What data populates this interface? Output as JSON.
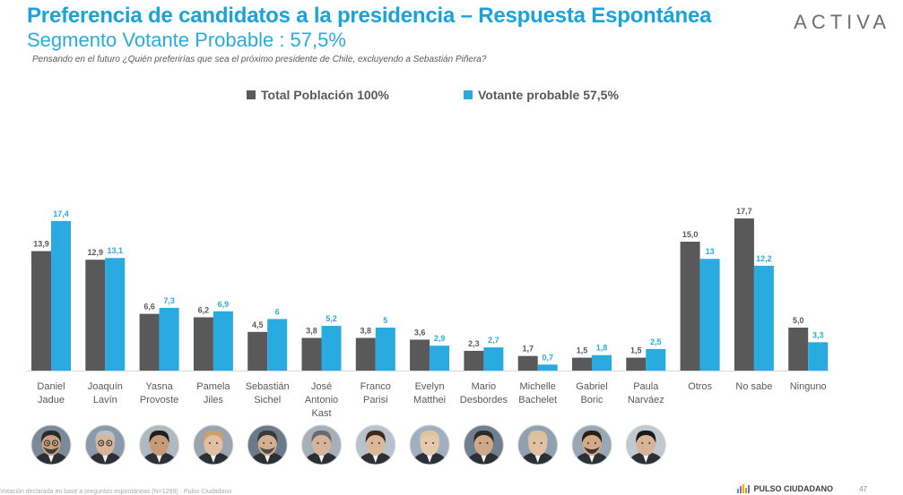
{
  "header": {
    "title": "Preferencia de candidatos a la presidencia – Respuesta Espontánea",
    "subtitle": "Segmento Votante Probable : 57,5%",
    "question": "Pensando en el futuro ¿Quién preferirías que sea el próximo presidente de Chile, excluyendo a Sebastián Piñera?",
    "brand": "ACTIVA"
  },
  "colors": {
    "series1": "#595959",
    "series2": "#29abe2",
    "title": "#1aa3d9"
  },
  "chart_data": {
    "type": "bar",
    "title": "Preferencia de candidatos a la presidencia – Respuesta Espontánea",
    "categories": [
      [
        "Daniel",
        "Jadue"
      ],
      [
        "Joaquín",
        "Lavín"
      ],
      [
        "Yasna",
        "Provoste"
      ],
      [
        "Pamela",
        "Jiles"
      ],
      [
        "Sebastián",
        "Sichel"
      ],
      [
        "José",
        "Antonio",
        "Kast"
      ],
      [
        "Franco",
        "Parisi"
      ],
      [
        "Evelyn",
        "Matthei"
      ],
      [
        "Mario",
        "Desbordes"
      ],
      [
        "Michelle",
        "Bachelet"
      ],
      [
        "Gabriel",
        "Boric"
      ],
      [
        "Paula",
        "Narváez"
      ],
      [
        "Otros"
      ],
      [
        "No sabe"
      ],
      [
        "Ninguno"
      ]
    ],
    "series": [
      {
        "name": "Total Población 100%",
        "values": [
          13.9,
          12.9,
          6.6,
          6.2,
          4.5,
          3.8,
          3.8,
          3.6,
          2.3,
          1.7,
          1.5,
          1.5,
          15.0,
          17.7,
          5.0
        ],
        "labels": [
          "13,9",
          "12,9",
          "6,6",
          "6,2",
          "4,5",
          "3,8",
          "3,8",
          "3,6",
          "2,3",
          "1,7",
          "1,5",
          "1,5",
          "15,0",
          "17,7",
          "5,0"
        ]
      },
      {
        "name": "Votante probable 57,5%",
        "values": [
          17.4,
          13.1,
          7.3,
          6.9,
          6,
          5.2,
          5,
          2.9,
          2.7,
          0.7,
          1.8,
          2.5,
          13,
          12.2,
          3.3
        ],
        "labels": [
          "17,4",
          "13,1",
          "7,3",
          "6,9",
          "6",
          "5,2",
          "5",
          "2,9",
          "2,7",
          "0,7",
          "1,8",
          "2,5",
          "13",
          "12,2",
          "3,3"
        ]
      }
    ],
    "legend_position": "top",
    "grid": false,
    "ylim": [
      0,
      18
    ]
  },
  "avatars": [
    {
      "hair": "#2a2a2a",
      "skin": "#c9a080",
      "bg": "#7a8a9a",
      "beard": true,
      "glasses": true
    },
    {
      "hair": "#bfbfbf",
      "skin": "#d8b59a",
      "bg": "#8a9aaa",
      "beard": false,
      "glasses": true
    },
    {
      "hair": "#1f1f1f",
      "skin": "#c79b7a",
      "bg": "#b0b8c0",
      "beard": false,
      "glasses": false
    },
    {
      "hair": "#c9a06a",
      "skin": "#e0c0a0",
      "bg": "#9aa5b0",
      "beard": false,
      "glasses": false
    },
    {
      "hair": "#3a3a3a",
      "skin": "#d4b090",
      "bg": "#6a7a8a",
      "beard": true,
      "glasses": false
    },
    {
      "hair": "#6a6a6a",
      "skin": "#d6b49a",
      "bg": "#a5b0bb",
      "beard": false,
      "glasses": false
    },
    {
      "hair": "#3a2a1a",
      "skin": "#dcb89a",
      "bg": "#b8c2cc",
      "beard": false,
      "glasses": false
    },
    {
      "hair": "#d9c7a0",
      "skin": "#e6c8ad",
      "bg": "#a0b0c0",
      "beard": false,
      "glasses": false
    },
    {
      "hair": "#2a2a2a",
      "skin": "#cfa888",
      "bg": "#6f7f8f",
      "beard": false,
      "glasses": false
    },
    {
      "hair": "#d9c29a",
      "skin": "#e2c0a2",
      "bg": "#8fa0b0",
      "beard": false,
      "glasses": false
    },
    {
      "hair": "#2b1e16",
      "skin": "#d2aa88",
      "bg": "#9aa8b5",
      "beard": true,
      "glasses": false
    },
    {
      "hair": "#1a1a1a",
      "skin": "#d8b396",
      "bg": "#c0c8d0",
      "beard": false,
      "glasses": false
    }
  ],
  "footer": {
    "note": "Votación declarada en base a preguntas espontáneas (N=1299) · Pulso Ciudadano",
    "brand": "PULSO CIUDADANO",
    "page": "47"
  }
}
